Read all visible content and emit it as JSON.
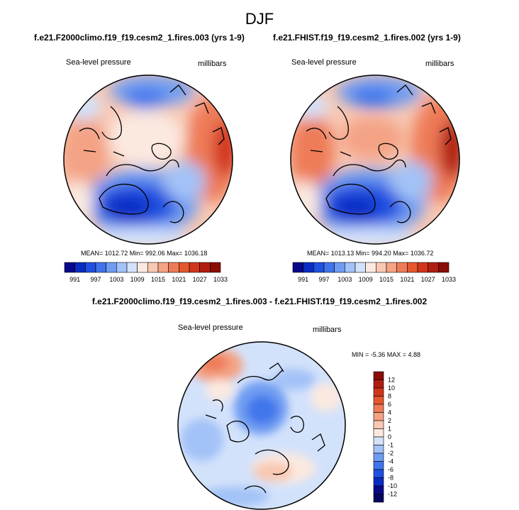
{
  "figure_title": "DJF",
  "panels": [
    {
      "case": "f.e21.F2000climo.f19_f19.cesm2_1.fires.003 (yrs 1-9)",
      "variable": "Sea-level pressure",
      "units": "millibars",
      "stats": "MEAN= 1012.72  Min= 992.06  Max= 1036.18"
    },
    {
      "case": "f.e21.FHIST.f19_f19.cesm2_1.fires.002 (yrs 1-9)",
      "variable": "Sea-level pressure",
      "units": "millibars",
      "stats": "MEAN= 1013.13  Min= 994.20  Max= 1036.72"
    }
  ],
  "diff_panel": {
    "title": "f.e21.F2000climo.f19_f19.cesm2_1.fires.003 - f.e21.FHIST.f19_f19.cesm2_1.fires.002",
    "variable": "Sea-level pressure",
    "units": "millibars",
    "stats": "MIN =  -5.36 MAX =   4.88"
  },
  "colorbar_main": {
    "labels": [
      "991",
      "997",
      "1003",
      "1009",
      "1015",
      "1021",
      "1027",
      "1033"
    ],
    "colors": [
      "#08088a",
      "#0a2bc4",
      "#1f50e0",
      "#3f74ec",
      "#6f9cf2",
      "#a3c2f7",
      "#d3e2fb",
      "#fbe9e0",
      "#f8c8b2",
      "#f4a385",
      "#ee7b58",
      "#e5572f",
      "#d1361b",
      "#b01e10",
      "#8a0d06"
    ]
  },
  "colorbar_diff": {
    "labels": [
      "12",
      "10",
      "8",
      "6",
      "4",
      "2",
      "1",
      "0",
      "-1",
      "-2",
      "-4",
      "-6",
      "-8",
      "-10",
      "-12"
    ],
    "colors": [
      "#8a0d06",
      "#b01e10",
      "#d1361b",
      "#e5572f",
      "#ee7b58",
      "#f4a385",
      "#f8c8b2",
      "#fbe9e0",
      "#d3e2fb",
      "#a3c2f7",
      "#6f9cf2",
      "#3f74ec",
      "#1f50e0",
      "#0a2bc4",
      "#08088a",
      "#050560"
    ]
  }
}
